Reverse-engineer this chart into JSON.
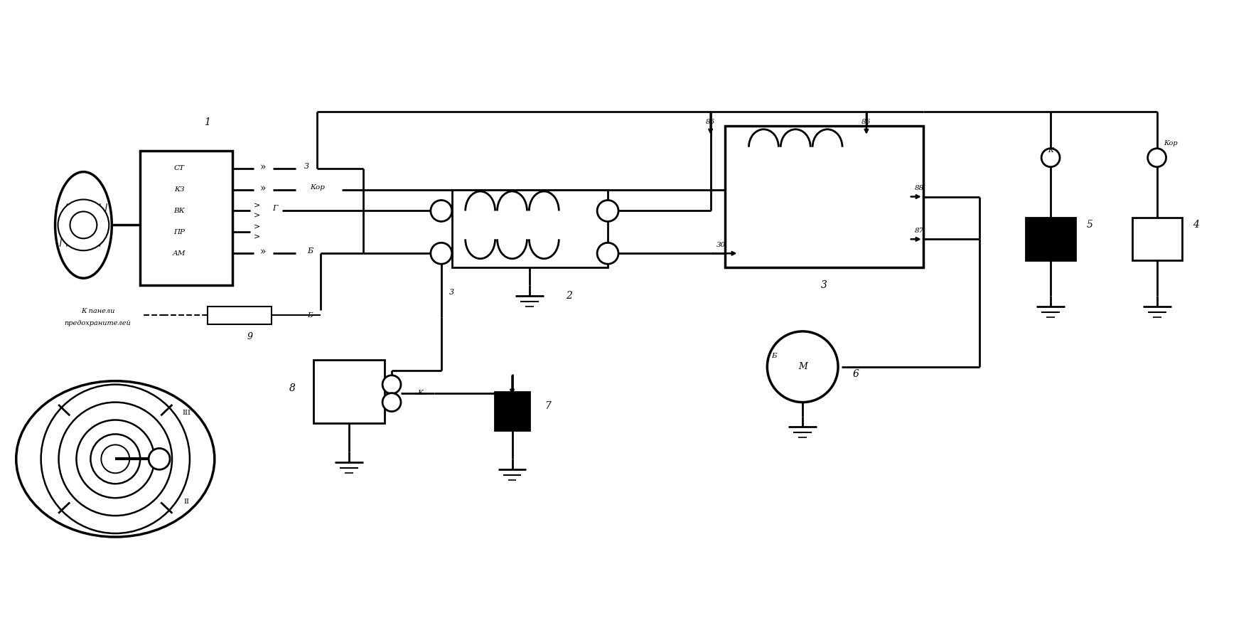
{
  "bg": "#ffffff",
  "lc": "#000000",
  "fig_w": 17.6,
  "fig_h": 8.76,
  "dpi": 100,
  "xmax": 176,
  "ymax": 87.6,
  "switch_labels": [
    "СТ",
    "КЗ",
    "ВК",
    "ПР",
    "АМ"
  ],
  "label_1": "1",
  "label_2": "2",
  "label_3": "3",
  "label_4": "4",
  "label_5": "5",
  "label_6": "6",
  "label_7": "7",
  "label_8": "8",
  "label_9": "9",
  "lbl_ST": "3",
  "lbl_KZ": "Кор",
  "lbl_VK": "Г",
  "lbl_AM": "Б",
  "lbl_85": "85",
  "lbl_86": "86",
  "lbl_88": "88",
  "lbl_87": "87",
  "lbl_30": "30",
  "lbl_K": "К",
  "lbl_Kor": "Кор",
  "lbl_B": "Б",
  "lbl_M": "М",
  "lbl_fuse1": "К панели",
  "lbl_fuse2": "предохранителей"
}
